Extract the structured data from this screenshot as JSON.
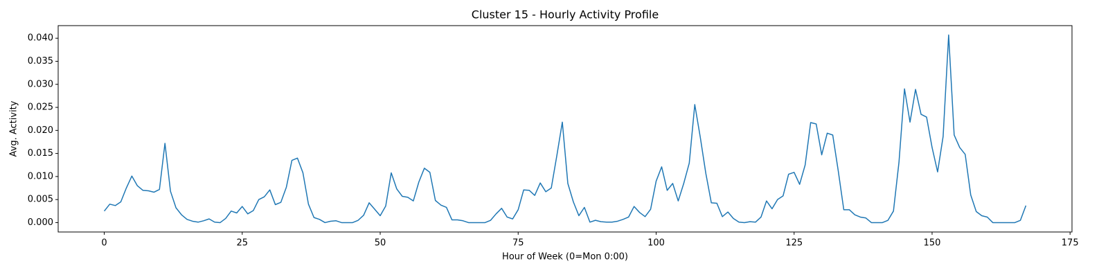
{
  "chart_data": {
    "type": "line",
    "title": "Cluster 15 - Hourly Activity Profile",
    "x_label": "Hour of Week (0=Mon 0:00)",
    "y_label": "Avg. Activity",
    "x": [
      0,
      1,
      2,
      3,
      4,
      5,
      6,
      7,
      8,
      9,
      10,
      11,
      12,
      13,
      14,
      15,
      16,
      17,
      18,
      19,
      20,
      21,
      22,
      23,
      24,
      25,
      26,
      27,
      28,
      29,
      30,
      31,
      32,
      33,
      34,
      35,
      36,
      37,
      38,
      39,
      40,
      41,
      42,
      43,
      44,
      45,
      46,
      47,
      48,
      49,
      50,
      51,
      52,
      53,
      54,
      55,
      56,
      57,
      58,
      59,
      60,
      61,
      62,
      63,
      64,
      65,
      66,
      67,
      68,
      69,
      70,
      71,
      72,
      73,
      74,
      75,
      76,
      77,
      78,
      79,
      80,
      81,
      82,
      83,
      84,
      85,
      86,
      87,
      88,
      89,
      90,
      91,
      92,
      93,
      94,
      95,
      96,
      97,
      98,
      99,
      100,
      101,
      102,
      103,
      104,
      105,
      106,
      107,
      108,
      109,
      110,
      111,
      112,
      113,
      114,
      115,
      116,
      117,
      118,
      119,
      120,
      121,
      122,
      123,
      124,
      125,
      126,
      127,
      128,
      129,
      130,
      131,
      132,
      133,
      134,
      135,
      136,
      137,
      138,
      139,
      140,
      141,
      142,
      143,
      144,
      145,
      146,
      147,
      148,
      149,
      150,
      151,
      152,
      153,
      154,
      155,
      156,
      157,
      158,
      159,
      160,
      161,
      162,
      163,
      164,
      165,
      166,
      167
    ],
    "series": [
      {
        "color": "#1f77b4",
        "values": [
          0.0025,
          0.004,
          0.0037,
          0.0045,
          0.0075,
          0.0101,
          0.008,
          0.007,
          0.0069,
          0.0066,
          0.0072,
          0.0172,
          0.0068,
          0.0032,
          0.0017,
          0.0007,
          0.0003,
          0.0001,
          0.0004,
          0.0008,
          0.0001,
          0.0,
          0.0009,
          0.0025,
          0.0021,
          0.0035,
          0.0019,
          0.0026,
          0.005,
          0.0056,
          0.0071,
          0.0039,
          0.0044,
          0.0077,
          0.0135,
          0.014,
          0.0108,
          0.004,
          0.0011,
          0.0007,
          0.0,
          0.0003,
          0.0004,
          0.0,
          0.0,
          0.0,
          0.0005,
          0.0016,
          0.0043,
          0.0029,
          0.0015,
          0.0036,
          0.0108,
          0.0073,
          0.0057,
          0.0055,
          0.0047,
          0.0088,
          0.0118,
          0.0109,
          0.0048,
          0.0038,
          0.0033,
          0.0006,
          0.0006,
          0.0004,
          0.0,
          0.0,
          0.0,
          0.0,
          0.0005,
          0.0019,
          0.0031,
          0.0012,
          0.0008,
          0.0028,
          0.0071,
          0.007,
          0.0059,
          0.0086,
          0.0067,
          0.0075,
          0.0145,
          0.0218,
          0.0085,
          0.0045,
          0.0015,
          0.0033,
          0.0001,
          0.0005,
          0.0002,
          0.0001,
          0.0001,
          0.0003,
          0.0007,
          0.0012,
          0.0035,
          0.0022,
          0.0013,
          0.0029,
          0.009,
          0.0121,
          0.007,
          0.0085,
          0.0047,
          0.0085,
          0.0129,
          0.0256,
          0.0185,
          0.0107,
          0.0043,
          0.0042,
          0.0013,
          0.0023,
          0.0009,
          0.0001,
          0.0,
          0.0002,
          0.0001,
          0.0012,
          0.0047,
          0.003,
          0.005,
          0.0058,
          0.0105,
          0.0109,
          0.0083,
          0.0125,
          0.0217,
          0.0214,
          0.0147,
          0.0194,
          0.019,
          0.0112,
          0.0028,
          0.0028,
          0.0017,
          0.0012,
          0.001,
          0.0,
          0.0,
          0.0,
          0.0005,
          0.0025,
          0.0131,
          0.029,
          0.0218,
          0.0289,
          0.0235,
          0.0229,
          0.0163,
          0.011,
          0.0187,
          0.0407,
          0.019,
          0.0163,
          0.0148,
          0.006,
          0.0024,
          0.0015,
          0.0012,
          0.0,
          0.0,
          0.0,
          0.0,
          0.0,
          0.0005,
          0.0037
        ]
      }
    ],
    "xlim": [
      -8.35,
      175.35
    ],
    "xticks": [
      0,
      25,
      50,
      75,
      100,
      125,
      150,
      175
    ],
    "ylim": [
      -0.002035,
      0.042735
    ],
    "yticks": [
      {
        "value": 0,
        "label": "0.000"
      },
      {
        "value": 0.005,
        "label": "0.005"
      },
      {
        "value": 0.01,
        "label": "0.010"
      },
      {
        "value": 0.015,
        "label": "0.015"
      },
      {
        "value": 0.02,
        "label": "0.020"
      },
      {
        "value": 0.025,
        "label": "0.025"
      },
      {
        "value": 0.03,
        "label": "0.030"
      },
      {
        "value": 0.035,
        "label": "0.035"
      },
      {
        "value": 0.04,
        "label": "0.040"
      }
    ],
    "grid": false
  }
}
